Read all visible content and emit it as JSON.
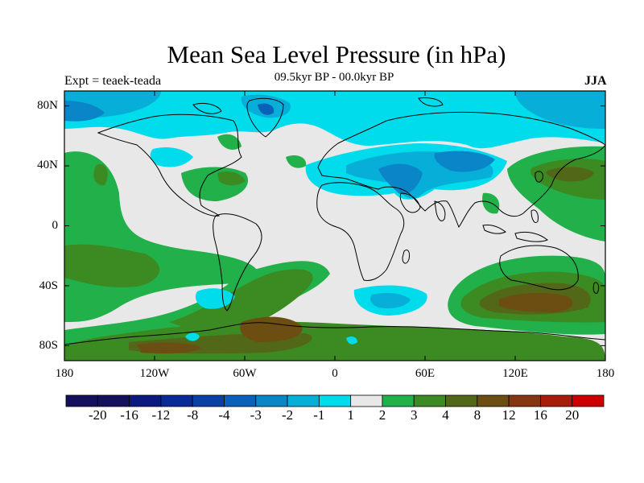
{
  "title": "Mean Sea Level Pressure (in hPa)",
  "subtitle_left": "Expt = teaek-teada",
  "subtitle_center": "09.5kyr BP - 00.0kyr BP",
  "subtitle_right": "JJA",
  "lat_labels": [
    "80N",
    "40N",
    "0",
    "40S",
    "80S"
  ],
  "lon_labels": [
    "180",
    "120W",
    "60W",
    "0",
    "60E",
    "120E",
    "180"
  ],
  "colorbar": {
    "labels": [
      "-20",
      "-16",
      "-12",
      "-8",
      "-4",
      "-3",
      "-2",
      "-1",
      "1",
      "2",
      "3",
      "4",
      "8",
      "12",
      "16",
      "20"
    ],
    "colors": [
      "#14105e",
      "#0c1a80",
      "#0a2a96",
      "#0a40a4",
      "#0a62b8",
      "#0a86c8",
      "#06aed8",
      "#00dcec",
      "#e8e8e8",
      "#22b04a",
      "#3c8a22",
      "#526818",
      "#6c4e12",
      "#863610",
      "#a61e0a",
      "#cc0000"
    ]
  },
  "map_extent": {
    "lon": [
      -180,
      180
    ],
    "lat": [
      -90,
      90
    ]
  }
}
